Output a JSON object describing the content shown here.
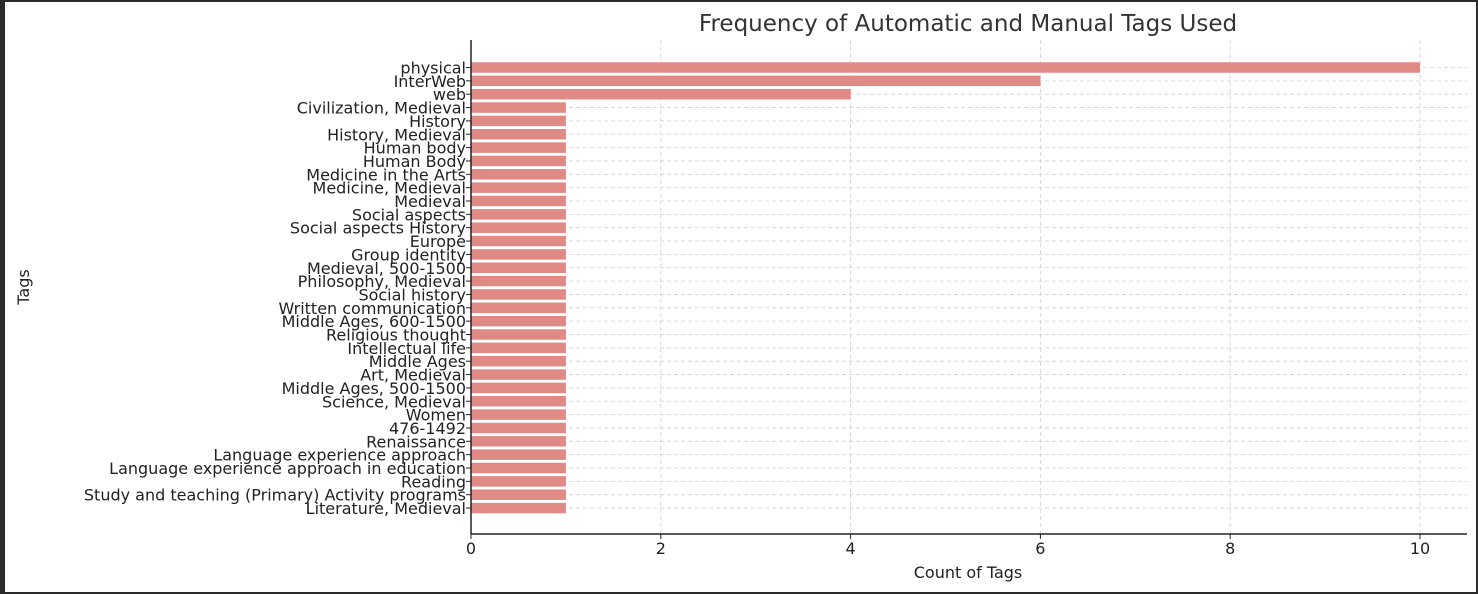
{
  "chart_data": {
    "type": "bar",
    "orientation": "horizontal",
    "title": "Frequency of Automatic and Manual Tags Used",
    "xlabel": "Count of Tags",
    "ylabel": "Tags",
    "xlim": [
      0,
      10.5
    ],
    "xticks": [
      0,
      2,
      4,
      6,
      8,
      10
    ],
    "grid": true,
    "bar_color": "#e08a85",
    "categories": [
      "physical",
      "InterWeb",
      "web",
      "Civilization, Medieval",
      "History",
      "History, Medieval",
      "Human body",
      "Human Body",
      "Medicine in the Arts",
      "Medicine, Medieval",
      "Medieval",
      "Social aspects",
      "Social aspects History",
      "Europe",
      "Group identity",
      "Medieval, 500-1500",
      "Philosophy, Medieval",
      "Social history",
      "Written communication",
      "Middle Ages, 600-1500",
      "Religious thought",
      "Intellectual life",
      "Middle Ages",
      "Art, Medieval",
      "Middle Ages, 500-1500",
      "Science, Medieval",
      "Women",
      "476-1492",
      "Renaissance",
      "Language experience approach",
      "Language experience approach in education",
      "Reading",
      "Study and teaching (Primary) Activity programs",
      "Literature, Medieval"
    ],
    "values": [
      10,
      6,
      4,
      1,
      1,
      1,
      1,
      1,
      1,
      1,
      1,
      1,
      1,
      1,
      1,
      1,
      1,
      1,
      1,
      1,
      1,
      1,
      1,
      1,
      1,
      1,
      1,
      1,
      1,
      1,
      1,
      1,
      1,
      1
    ]
  }
}
